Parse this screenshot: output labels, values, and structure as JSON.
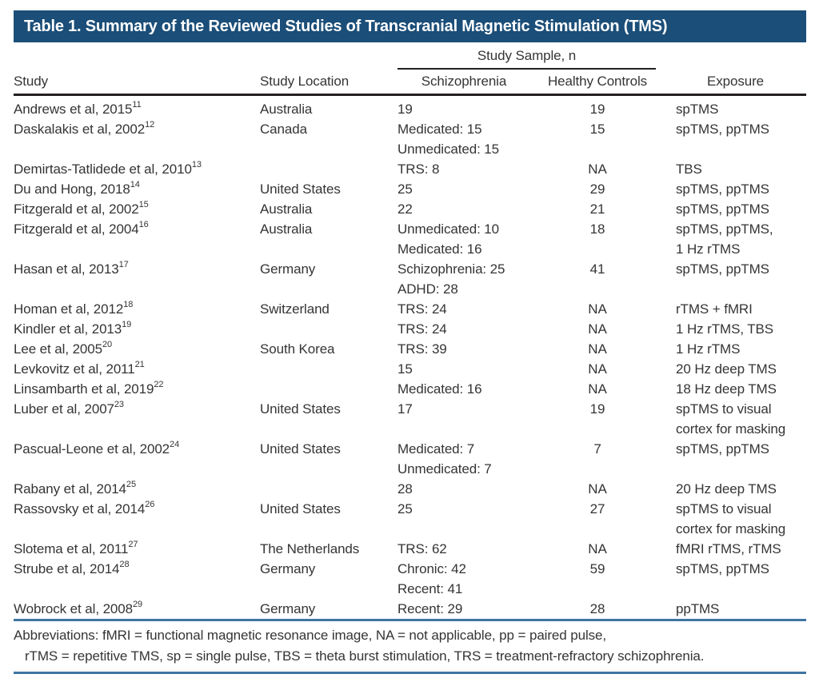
{
  "title_bar": {
    "text": "Table 1. Summary of the Reviewed Studies of Transcranial Magnetic Stimulation (TMS)",
    "bg_color": "#1b4e78",
    "text_color": "#ffffff"
  },
  "table": {
    "sample_spanner": "Study Sample, n",
    "columns": {
      "study": "Study",
      "location": "Study Location",
      "schizophrenia": "Schizophrenia",
      "healthy_controls": "Healthy Controls",
      "exposure": "Exposure"
    },
    "rows": [
      {
        "study": "Andrews et al, 2015",
        "ref": "11",
        "location": "Australia",
        "schizophrenia": [
          "19"
        ],
        "healthy_controls": "19",
        "exposure": [
          "spTMS"
        ]
      },
      {
        "study": "Daskalakis et al, 2002",
        "ref": "12",
        "location": "Canada",
        "schizophrenia": [
          "Medicated: 15",
          "Unmedicated: 15"
        ],
        "healthy_controls": "15",
        "exposure": [
          "spTMS, ppTMS"
        ]
      },
      {
        "study": "Demirtas-Tatlidede et al, 2010",
        "ref": "13",
        "location": "",
        "schizophrenia": [
          "TRS: 8"
        ],
        "healthy_controls": "NA",
        "exposure": [
          "TBS"
        ]
      },
      {
        "study": "Du and Hong, 2018",
        "ref": "14",
        "location": "United States",
        "schizophrenia": [
          "25"
        ],
        "healthy_controls": "29",
        "exposure": [
          "spTMS, ppTMS"
        ]
      },
      {
        "study": "Fitzgerald et al, 2002",
        "ref": "15",
        "location": "Australia",
        "schizophrenia": [
          "22"
        ],
        "healthy_controls": "21",
        "exposure": [
          "spTMS, ppTMS"
        ]
      },
      {
        "study": "Fitzgerald et al, 2004",
        "ref": "16",
        "location": "Australia",
        "schizophrenia": [
          "Unmedicated: 10",
          "Medicated: 16"
        ],
        "healthy_controls": "18",
        "exposure": [
          "spTMS, ppTMS,",
          "1 Hz rTMS"
        ]
      },
      {
        "study": "Hasan et al, 2013",
        "ref": "17",
        "location": "Germany",
        "schizophrenia": [
          "Schizophrenia: 25",
          "ADHD: 28"
        ],
        "healthy_controls": "41",
        "exposure": [
          "spTMS, ppTMS"
        ]
      },
      {
        "study": "Homan et al, 2012",
        "ref": "18",
        "location": "Switzerland",
        "schizophrenia": [
          "TRS: 24"
        ],
        "healthy_controls": "NA",
        "exposure": [
          "rTMS + fMRI"
        ]
      },
      {
        "study": "Kindler et al, 2013",
        "ref": "19",
        "location": "",
        "schizophrenia": [
          "TRS: 24"
        ],
        "healthy_controls": "NA",
        "exposure": [
          "1 Hz rTMS, TBS"
        ]
      },
      {
        "study": "Lee et al, 2005",
        "ref": "20",
        "location": "South Korea",
        "schizophrenia": [
          "TRS: 39"
        ],
        "healthy_controls": "NA",
        "exposure": [
          "1 Hz rTMS"
        ]
      },
      {
        "study": "Levkovitz et al, 2011",
        "ref": "21",
        "location": "",
        "schizophrenia": [
          "15"
        ],
        "healthy_controls": "NA",
        "exposure": [
          "20 Hz deep TMS"
        ]
      },
      {
        "study": "Linsambarth et al, 2019",
        "ref": "22",
        "location": "",
        "schizophrenia": [
          "Medicated: 16"
        ],
        "healthy_controls": "NA",
        "exposure": [
          "18 Hz deep TMS"
        ]
      },
      {
        "study": "Luber et al, 2007",
        "ref": "23",
        "location": "United States",
        "schizophrenia": [
          "17"
        ],
        "healthy_controls": "19",
        "exposure": [
          "spTMS to visual",
          "cortex for masking"
        ]
      },
      {
        "study": "Pascual-Leone et al, 2002",
        "ref": "24",
        "location": "United States",
        "schizophrenia": [
          "Medicated: 7",
          "Unmedicated: 7"
        ],
        "healthy_controls": "7",
        "exposure": [
          "spTMS, ppTMS"
        ]
      },
      {
        "study": "Rabany et al, 2014",
        "ref": "25",
        "location": "",
        "schizophrenia": [
          "28"
        ],
        "healthy_controls": "NA",
        "exposure": [
          "20 Hz deep TMS"
        ]
      },
      {
        "study": "Rassovsky et al, 2014",
        "ref": "26",
        "location": "United States",
        "schizophrenia": [
          "25"
        ],
        "healthy_controls": "27",
        "exposure": [
          "spTMS to visual",
          "cortex for masking"
        ]
      },
      {
        "study": "Slotema et al, 2011",
        "ref": "27",
        "location": "The Netherlands",
        "schizophrenia": [
          "TRS: 62"
        ],
        "healthy_controls": "NA",
        "exposure": [
          "fMRI rTMS, rTMS"
        ]
      },
      {
        "study": "Strube et al, 2014",
        "ref": "28",
        "location": "Germany",
        "schizophrenia": [
          "Chronic: 42",
          "Recent: 41"
        ],
        "healthy_controls": "59",
        "exposure": [
          "spTMS, ppTMS"
        ]
      },
      {
        "study": "Wobrock et al, 2008",
        "ref": "29",
        "location": "Germany",
        "schizophrenia": [
          "Recent: 29"
        ],
        "healthy_controls": "28",
        "exposure": [
          "ppTMS"
        ]
      }
    ]
  },
  "footnote": {
    "line1": "Abbreviations: fMRI = functional magnetic resonance image, NA = not applicable, pp = paired pulse,",
    "line2": "rTMS = repetitive TMS, sp = single pulse, TBS = theta burst stimulation, TRS = treatment-refractory schizophrenia."
  },
  "colors": {
    "title_bar_bg": "#1b4e78",
    "header_rule_black": "#231f20",
    "footer_rule_blue": "#3f75a2",
    "body_text": "#363436"
  }
}
